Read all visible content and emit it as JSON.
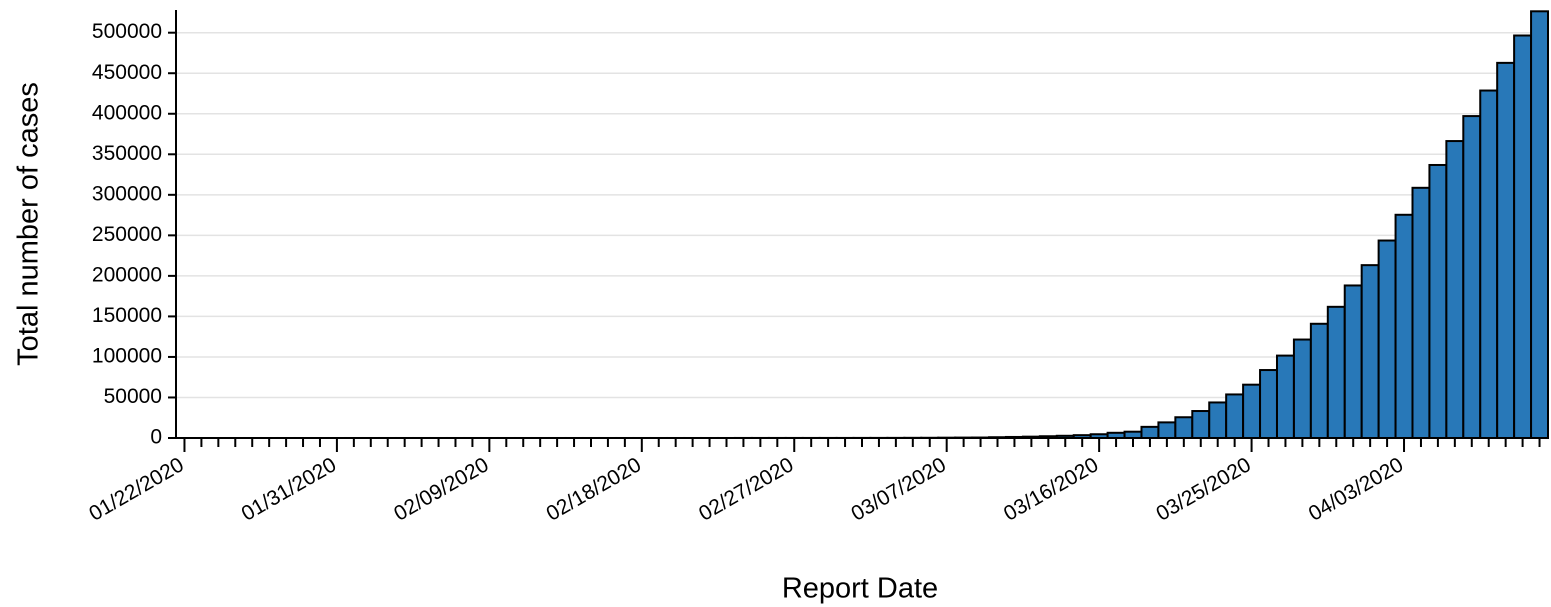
{
  "chart_data": {
    "type": "bar",
    "x_label": "Report Date",
    "y_label": "Total number of cases",
    "color": "#2878b8",
    "edge_color": "#000000",
    "grid": true,
    "categories": [
      "01/22/2020",
      null,
      null,
      null,
      null,
      null,
      null,
      null,
      null,
      "01/31/2020",
      null,
      null,
      null,
      null,
      null,
      null,
      null,
      null,
      "02/09/2020",
      null,
      null,
      null,
      null,
      null,
      null,
      null,
      null,
      "02/18/2020",
      null,
      null,
      null,
      null,
      null,
      null,
      null,
      null,
      "02/27/2020",
      null,
      null,
      null,
      null,
      null,
      null,
      null,
      null,
      "03/07/2020",
      null,
      null,
      null,
      null,
      null,
      null,
      null,
      null,
      "03/16/2020",
      null,
      null,
      null,
      null,
      null,
      null,
      null,
      null,
      "03/25/2020",
      null,
      null,
      null,
      null,
      null,
      null,
      null,
      null,
      "04/03/2020",
      null,
      null,
      null,
      null,
      null,
      null,
      null,
      null
    ],
    "values": [
      1,
      1,
      2,
      2,
      5,
      5,
      5,
      5,
      5,
      7,
      8,
      8,
      11,
      11,
      11,
      11,
      11,
      11,
      11,
      11,
      12,
      12,
      13,
      13,
      13,
      13,
      13,
      13,
      13,
      13,
      15,
      15,
      15,
      51,
      51,
      57,
      58,
      60,
      68,
      74,
      98,
      118,
      149,
      217,
      262,
      402,
      518,
      583,
      959,
      1281,
      1663,
      2179,
      2727,
      3499,
      4632,
      6421,
      7783,
      13747,
      19273,
      25600,
      33276,
      43847,
      53740,
      65778,
      83836,
      101657,
      121465,
      140909,
      161831,
      188172,
      213242,
      243622,
      275367,
      308650,
      336802,
      366317,
      397121,
      428654,
      462780,
      496535,
      526396
    ],
    "ylim": [
      0,
      528000
    ],
    "yticks": [
      0,
      50000,
      100000,
      150000,
      200000,
      250000,
      300000,
      350000,
      400000,
      450000,
      500000
    ]
  }
}
